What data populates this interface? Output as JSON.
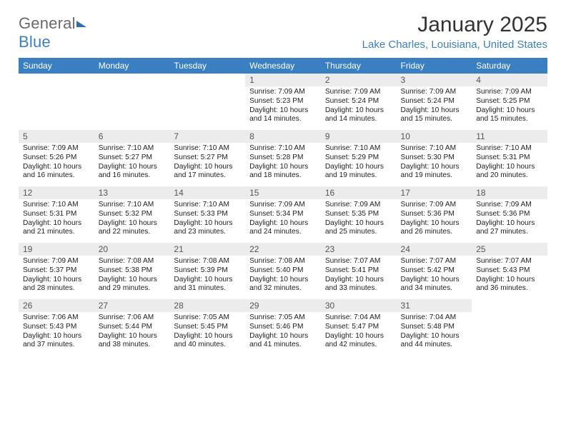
{
  "brand": {
    "part1": "General",
    "part2": "Blue"
  },
  "title": "January 2025",
  "location": "Lake Charles, Louisiana, United States",
  "colors": {
    "accent": "#3a7fc2",
    "header_bg": "#3a7fc2",
    "header_text": "#ffffff",
    "daynum_bg": "#ececec",
    "text": "#222222",
    "background": "#ffffff"
  },
  "calendar": {
    "type": "table",
    "columns": [
      "Sunday",
      "Monday",
      "Tuesday",
      "Wednesday",
      "Thursday",
      "Friday",
      "Saturday"
    ],
    "col_width_pct": 14.28,
    "header_fontsize": 12,
    "body_fontsize": 10.2,
    "weeks": [
      [
        null,
        null,
        null,
        {
          "n": "1",
          "sunrise": "7:09 AM",
          "sunset": "5:23 PM",
          "dl_h": 10,
          "dl_m": 14
        },
        {
          "n": "2",
          "sunrise": "7:09 AM",
          "sunset": "5:24 PM",
          "dl_h": 10,
          "dl_m": 14
        },
        {
          "n": "3",
          "sunrise": "7:09 AM",
          "sunset": "5:24 PM",
          "dl_h": 10,
          "dl_m": 15
        },
        {
          "n": "4",
          "sunrise": "7:09 AM",
          "sunset": "5:25 PM",
          "dl_h": 10,
          "dl_m": 15
        }
      ],
      [
        {
          "n": "5",
          "sunrise": "7:09 AM",
          "sunset": "5:26 PM",
          "dl_h": 10,
          "dl_m": 16
        },
        {
          "n": "6",
          "sunrise": "7:10 AM",
          "sunset": "5:27 PM",
          "dl_h": 10,
          "dl_m": 16
        },
        {
          "n": "7",
          "sunrise": "7:10 AM",
          "sunset": "5:27 PM",
          "dl_h": 10,
          "dl_m": 17
        },
        {
          "n": "8",
          "sunrise": "7:10 AM",
          "sunset": "5:28 PM",
          "dl_h": 10,
          "dl_m": 18
        },
        {
          "n": "9",
          "sunrise": "7:10 AM",
          "sunset": "5:29 PM",
          "dl_h": 10,
          "dl_m": 19
        },
        {
          "n": "10",
          "sunrise": "7:10 AM",
          "sunset": "5:30 PM",
          "dl_h": 10,
          "dl_m": 19
        },
        {
          "n": "11",
          "sunrise": "7:10 AM",
          "sunset": "5:31 PM",
          "dl_h": 10,
          "dl_m": 20
        }
      ],
      [
        {
          "n": "12",
          "sunrise": "7:10 AM",
          "sunset": "5:31 PM",
          "dl_h": 10,
          "dl_m": 21
        },
        {
          "n": "13",
          "sunrise": "7:10 AM",
          "sunset": "5:32 PM",
          "dl_h": 10,
          "dl_m": 22
        },
        {
          "n": "14",
          "sunrise": "7:10 AM",
          "sunset": "5:33 PM",
          "dl_h": 10,
          "dl_m": 23
        },
        {
          "n": "15",
          "sunrise": "7:09 AM",
          "sunset": "5:34 PM",
          "dl_h": 10,
          "dl_m": 24
        },
        {
          "n": "16",
          "sunrise": "7:09 AM",
          "sunset": "5:35 PM",
          "dl_h": 10,
          "dl_m": 25
        },
        {
          "n": "17",
          "sunrise": "7:09 AM",
          "sunset": "5:36 PM",
          "dl_h": 10,
          "dl_m": 26
        },
        {
          "n": "18",
          "sunrise": "7:09 AM",
          "sunset": "5:36 PM",
          "dl_h": 10,
          "dl_m": 27
        }
      ],
      [
        {
          "n": "19",
          "sunrise": "7:09 AM",
          "sunset": "5:37 PM",
          "dl_h": 10,
          "dl_m": 28
        },
        {
          "n": "20",
          "sunrise": "7:08 AM",
          "sunset": "5:38 PM",
          "dl_h": 10,
          "dl_m": 29
        },
        {
          "n": "21",
          "sunrise": "7:08 AM",
          "sunset": "5:39 PM",
          "dl_h": 10,
          "dl_m": 31
        },
        {
          "n": "22",
          "sunrise": "7:08 AM",
          "sunset": "5:40 PM",
          "dl_h": 10,
          "dl_m": 32
        },
        {
          "n": "23",
          "sunrise": "7:07 AM",
          "sunset": "5:41 PM",
          "dl_h": 10,
          "dl_m": 33
        },
        {
          "n": "24",
          "sunrise": "7:07 AM",
          "sunset": "5:42 PM",
          "dl_h": 10,
          "dl_m": 34
        },
        {
          "n": "25",
          "sunrise": "7:07 AM",
          "sunset": "5:43 PM",
          "dl_h": 10,
          "dl_m": 36
        }
      ],
      [
        {
          "n": "26",
          "sunrise": "7:06 AM",
          "sunset": "5:43 PM",
          "dl_h": 10,
          "dl_m": 37
        },
        {
          "n": "27",
          "sunrise": "7:06 AM",
          "sunset": "5:44 PM",
          "dl_h": 10,
          "dl_m": 38
        },
        {
          "n": "28",
          "sunrise": "7:05 AM",
          "sunset": "5:45 PM",
          "dl_h": 10,
          "dl_m": 40
        },
        {
          "n": "29",
          "sunrise": "7:05 AM",
          "sunset": "5:46 PM",
          "dl_h": 10,
          "dl_m": 41
        },
        {
          "n": "30",
          "sunrise": "7:04 AM",
          "sunset": "5:47 PM",
          "dl_h": 10,
          "dl_m": 42
        },
        {
          "n": "31",
          "sunrise": "7:04 AM",
          "sunset": "5:48 PM",
          "dl_h": 10,
          "dl_m": 44
        },
        null
      ]
    ],
    "labels": {
      "sunrise": "Sunrise:",
      "sunset": "Sunset:",
      "daylight_tpl": "Daylight: {h} hours and {m} minutes."
    }
  }
}
